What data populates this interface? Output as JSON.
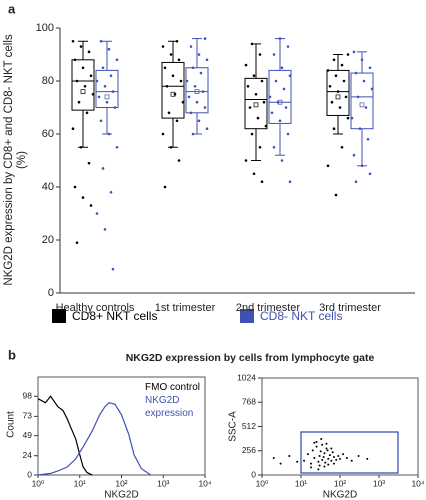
{
  "panel_labels": [
    "a",
    "b"
  ],
  "panel_b_title": "NKG2D expression by cells from lymphocyte gate",
  "chart_data": [
    {
      "type": "box",
      "y_label": "NKG2D expression by CD8+ and CD8- NKT cells (%)",
      "categories": [
        "Healthy controls",
        "1st trimester",
        "2nd trimester",
        "3rd trimester"
      ],
      "ylim": [
        0,
        100
      ],
      "yticks": [
        0,
        20,
        40,
        60,
        80,
        100
      ],
      "series": [
        {
          "name": "CD8+ NKT cells",
          "color": "#000000",
          "boxes": [
            {
              "min": 55,
              "q1": 69,
              "median": 80,
              "q3": 88,
              "max": 95,
              "mean": 76
            },
            {
              "min": 55,
              "q1": 66,
              "median": 78,
              "q3": 87,
              "max": 95,
              "mean": 75
            },
            {
              "min": 50,
              "q1": 62,
              "median": 73,
              "q3": 81,
              "max": 94,
              "mean": 71
            },
            {
              "min": 60,
              "q1": 67,
              "median": 76,
              "q3": 84,
              "max": 90,
              "mean": 74
            }
          ],
          "points": [
            [
              95,
              93,
              91,
              88,
              85,
              82,
              80,
              78,
              75,
              72,
              68,
              62,
              55,
              49,
              40,
              36,
              33,
              19
            ],
            [
              95,
              93,
              90,
              88,
              85,
              82,
              80,
              78,
              75,
              72,
              68,
              65,
              60,
              55,
              50,
              40
            ],
            [
              94,
              90,
              86,
              82,
              80,
              78,
              75,
              72,
              70,
              66,
              63,
              60,
              55,
              50,
              45,
              42
            ],
            [
              90,
              88,
              86,
              84,
              82,
              80,
              78,
              76,
              74,
              72,
              70,
              66,
              62,
              55,
              48,
              37
            ]
          ]
        },
        {
          "name": "CD8- NKT cells",
          "color": "#3f51b5",
          "boxes": [
            {
              "min": 60,
              "q1": 70,
              "median": 76,
              "q3": 84,
              "max": 95,
              "mean": 74
            },
            {
              "min": 60,
              "q1": 68,
              "median": 76,
              "q3": 85,
              "max": 96,
              "mean": 76
            },
            {
              "min": 52,
              "q1": 64,
              "median": 72,
              "q3": 84,
              "max": 96,
              "mean": 72
            },
            {
              "min": 48,
              "q1": 62,
              "median": 74,
              "q3": 83,
              "max": 91,
              "mean": 71
            }
          ],
          "points": [
            [
              95,
              92,
              88,
              85,
              82,
              80,
              78,
              76,
              74,
              72,
              70,
              65,
              60,
              55,
              47,
              38,
              30,
              24,
              9
            ],
            [
              96,
              93,
              90,
              88,
              85,
              83,
              80,
              78,
              76,
              74,
              72,
              70,
              68,
              65,
              62,
              60
            ],
            [
              96,
              93,
              90,
              85,
              82,
              80,
              77,
              74,
              72,
              70,
              68,
              65,
              60,
              55,
              50,
              42
            ],
            [
              91,
              88,
              85,
              83,
              80,
              77,
              74,
              70,
              66,
              62,
              58,
              52,
              48,
              45,
              42
            ]
          ]
        }
      ]
    },
    {
      "type": "line",
      "x_label": "NKG2D",
      "y_label": "Count",
      "xscale": "log",
      "xlim": [
        1,
        10000
      ],
      "xticks": [
        {
          "value": 1,
          "label": "10⁰"
        },
        {
          "value": 10,
          "label": "10¹"
        },
        {
          "value": 100,
          "label": "10²"
        },
        {
          "value": 1000,
          "label": "10³"
        },
        {
          "value": 10000,
          "label": "10⁴"
        }
      ],
      "ylim": [
        0,
        122
      ],
      "yticks": [
        0,
        24,
        49,
        73,
        98
      ],
      "series": [
        {
          "name": "FMO control",
          "color": "#000000",
          "x": [
            1,
            1.5,
            2,
            3,
            4,
            5,
            6,
            8,
            10,
            12,
            15,
            20
          ],
          "values": [
            95,
            90,
            98,
            85,
            80,
            70,
            60,
            45,
            25,
            10,
            3,
            0
          ]
        },
        {
          "name": "NKG2D expression",
          "color": "#3f51b5",
          "x": [
            1,
            2,
            3,
            5,
            8,
            12,
            20,
            30,
            40,
            50,
            70,
            100,
            150,
            200,
            300,
            500
          ],
          "values": [
            0,
            2,
            5,
            10,
            20,
            35,
            55,
            75,
            85,
            90,
            88,
            75,
            50,
            25,
            8,
            0
          ]
        }
      ]
    },
    {
      "type": "scatter",
      "x_label": "NKG2D",
      "y_label": "SSC-A",
      "xscale": "log",
      "xlim": [
        1,
        10000
      ],
      "xticks": [
        {
          "value": 1,
          "label": "10⁰"
        },
        {
          "value": 10,
          "label": "10¹"
        },
        {
          "value": 100,
          "label": "10²"
        },
        {
          "value": 1000,
          "label": "10³"
        },
        {
          "value": 10000,
          "label": "10⁴"
        }
      ],
      "ylim": [
        0,
        1024
      ],
      "yticks": [
        0,
        256,
        512,
        768,
        1024
      ],
      "color": "#000000",
      "x": [
        12,
        15,
        18,
        20,
        22,
        25,
        28,
        30,
        32,
        35,
        38,
        40,
        42,
        45,
        50,
        55,
        60,
        65,
        70,
        80,
        90,
        100,
        120,
        150,
        200,
        300,
        25,
        30,
        35,
        40,
        45,
        50,
        60,
        70,
        18,
        22,
        28,
        33,
        48,
        8,
        5,
        3,
        2,
        500
      ],
      "values": [
        150,
        220,
        120,
        260,
        180,
        300,
        140,
        200,
        250,
        160,
        190,
        230,
        130,
        280,
        170,
        210,
        150,
        240,
        190,
        160,
        200,
        170,
        220,
        180,
        150,
        200,
        350,
        100,
        320,
        90,
        330,
        110,
        280,
        120,
        80,
        340,
        60,
        380,
        260,
        140,
        200,
        120,
        180,
        170
      ]
    }
  ]
}
